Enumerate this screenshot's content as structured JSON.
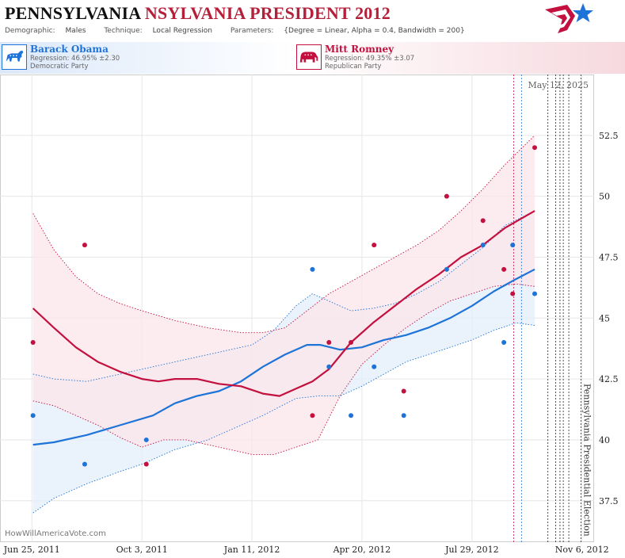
{
  "header": {
    "title_state": "PENNSYLVANIA",
    "title_rest": "NSYLVANIA PRESIDENT 2012",
    "demographic_label": "Demographic:",
    "demographic_value": "Males",
    "technique_label": "Technique:",
    "technique_value": "Local Regression",
    "parameters_label": "Parameters:",
    "parameters_value": "{Degree = Linear, Alpha = 0.4, Bandwidth = 200}",
    "logo_icon": "star-flag-logo-icon"
  },
  "candidates": [
    {
      "name": "Barack Obama",
      "regression": "Regression: 46.95% ±2.30",
      "party": "Democratic Party",
      "icon": "donkey-icon",
      "color": "#1e73d8"
    },
    {
      "name": "Mitt Romney",
      "regression": "Regression: 49.35% ±3.07",
      "party": "Republican Party",
      "icon": "elephant-icon",
      "color": "#c3103f"
    }
  ],
  "watermark": "HowWillAmericaVote.com",
  "chart_data": {
    "type": "line",
    "x_ticks": [
      "Jun 25, 2011",
      "Oct 3, 2011",
      "Jan 11, 2012",
      "Apr 20, 2012",
      "Jul 29, 2012",
      "Nov 6, 2012"
    ],
    "y_ticks": [
      "37.5",
      "40",
      "42.5",
      "45",
      "47.5",
      "50",
      "52.5"
    ],
    "ylim": [
      35.8,
      55
    ],
    "xlim_days": [
      -29,
      511
    ],
    "date_label": "May 12, 2025",
    "election_label": "Pennsylvania Presidential Election",
    "grid": true,
    "marker_days": [
      438,
      445,
      469,
      476,
      480,
      483,
      488,
      499
    ],
    "series": [
      {
        "name": "Barack Obama",
        "color": "#1e73d8",
        "band_color": "#e3edfa",
        "points": [
          [
            1,
            41
          ],
          [
            48,
            39
          ],
          [
            104,
            40
          ],
          [
            255,
            47
          ],
          [
            270,
            43
          ],
          [
            290,
            41
          ],
          [
            311,
            43
          ],
          [
            338,
            41
          ],
          [
            377,
            47
          ],
          [
            410,
            48
          ],
          [
            429,
            44
          ],
          [
            437,
            48
          ],
          [
            457,
            46
          ]
        ],
        "trend": [
          [
            1,
            39.8
          ],
          [
            20,
            39.9
          ],
          [
            50,
            40.2
          ],
          [
            80,
            40.6
          ],
          [
            110,
            41
          ],
          [
            130,
            41.5
          ],
          [
            150,
            41.8
          ],
          [
            170,
            42
          ],
          [
            190,
            42.4
          ],
          [
            210,
            43
          ],
          [
            230,
            43.5
          ],
          [
            250,
            43.9
          ],
          [
            262,
            43.9
          ],
          [
            280,
            43.7
          ],
          [
            300,
            43.8
          ],
          [
            320,
            44.1
          ],
          [
            340,
            44.3
          ],
          [
            360,
            44.6
          ],
          [
            380,
            45
          ],
          [
            400,
            45.5
          ],
          [
            420,
            46.1
          ],
          [
            440,
            46.6
          ],
          [
            457,
            47
          ]
        ],
        "upper": [
          [
            1,
            42.7
          ],
          [
            20,
            42.5
          ],
          [
            50,
            42.4
          ],
          [
            80,
            42.7
          ],
          [
            110,
            43
          ],
          [
            140,
            43.3
          ],
          [
            170,
            43.6
          ],
          [
            200,
            43.9
          ],
          [
            220,
            44.5
          ],
          [
            240,
            45.5
          ],
          [
            255,
            46
          ],
          [
            270,
            45.7
          ],
          [
            290,
            45.3
          ],
          [
            310,
            45.4
          ],
          [
            330,
            45.6
          ],
          [
            350,
            46
          ],
          [
            370,
            46.5
          ],
          [
            390,
            47.2
          ],
          [
            410,
            47.9
          ],
          [
            430,
            48.8
          ],
          [
            457,
            49.4
          ]
        ],
        "lower": [
          [
            1,
            37
          ],
          [
            20,
            37.6
          ],
          [
            50,
            38.2
          ],
          [
            80,
            38.7
          ],
          [
            100,
            39
          ],
          [
            130,
            39.6
          ],
          [
            160,
            40
          ],
          [
            180,
            40.4
          ],
          [
            210,
            41
          ],
          [
            240,
            41.7
          ],
          [
            260,
            41.8
          ],
          [
            280,
            41.8
          ],
          [
            300,
            42.2
          ],
          [
            320,
            42.7
          ],
          [
            340,
            43.2
          ],
          [
            360,
            43.5
          ],
          [
            380,
            43.8
          ],
          [
            400,
            44.1
          ],
          [
            420,
            44.5
          ],
          [
            440,
            44.8
          ],
          [
            457,
            44.7
          ]
        ]
      },
      {
        "name": "Mitt Romney",
        "color": "#c3103f",
        "band_color": "#fbe6ea",
        "points": [
          [
            1,
            44
          ],
          [
            48,
            48
          ],
          [
            104,
            39
          ],
          [
            255,
            41
          ],
          [
            270,
            44
          ],
          [
            290,
            44
          ],
          [
            311,
            48
          ],
          [
            338,
            42
          ],
          [
            377,
            50
          ],
          [
            410,
            49
          ],
          [
            429,
            47
          ],
          [
            437,
            46
          ],
          [
            457,
            52
          ]
        ],
        "trend": [
          [
            1,
            45.4
          ],
          [
            20,
            44.6
          ],
          [
            40,
            43.8
          ],
          [
            60,
            43.2
          ],
          [
            80,
            42.8
          ],
          [
            100,
            42.5
          ],
          [
            115,
            42.4
          ],
          [
            130,
            42.5
          ],
          [
            150,
            42.5
          ],
          [
            170,
            42.3
          ],
          [
            190,
            42.2
          ],
          [
            210,
            41.9
          ],
          [
            225,
            41.8
          ],
          [
            240,
            42.1
          ],
          [
            255,
            42.4
          ],
          [
            270,
            42.9
          ],
          [
            290,
            44
          ],
          [
            310,
            44.8
          ],
          [
            330,
            45.5
          ],
          [
            350,
            46.2
          ],
          [
            370,
            46.8
          ],
          [
            390,
            47.5
          ],
          [
            410,
            48
          ],
          [
            430,
            48.7
          ],
          [
            457,
            49.4
          ]
        ],
        "upper": [
          [
            1,
            49.3
          ],
          [
            20,
            47.8
          ],
          [
            40,
            46.7
          ],
          [
            60,
            46
          ],
          [
            80,
            45.6
          ],
          [
            100,
            45.3
          ],
          [
            130,
            44.9
          ],
          [
            160,
            44.6
          ],
          [
            190,
            44.4
          ],
          [
            210,
            44.4
          ],
          [
            230,
            44.6
          ],
          [
            250,
            45.3
          ],
          [
            270,
            46
          ],
          [
            290,
            46.5
          ],
          [
            310,
            47
          ],
          [
            330,
            47.5
          ],
          [
            350,
            48
          ],
          [
            370,
            48.6
          ],
          [
            390,
            49.4
          ],
          [
            410,
            50.3
          ],
          [
            430,
            51.3
          ],
          [
            457,
            52.5
          ]
        ],
        "lower": [
          [
            1,
            41.6
          ],
          [
            20,
            41.4
          ],
          [
            40,
            41
          ],
          [
            60,
            40.6
          ],
          [
            80,
            40.1
          ],
          [
            100,
            39.7
          ],
          [
            120,
            40
          ],
          [
            140,
            40
          ],
          [
            160,
            39.8
          ],
          [
            180,
            39.6
          ],
          [
            200,
            39.4
          ],
          [
            220,
            39.4
          ],
          [
            240,
            39.7
          ],
          [
            260,
            40
          ],
          [
            280,
            41.8
          ],
          [
            300,
            43.1
          ],
          [
            320,
            43.9
          ],
          [
            340,
            44.6
          ],
          [
            360,
            45.2
          ],
          [
            380,
            45.7
          ],
          [
            400,
            46
          ],
          [
            420,
            46.3
          ],
          [
            440,
            46.4
          ],
          [
            457,
            46.3
          ]
        ]
      }
    ]
  }
}
